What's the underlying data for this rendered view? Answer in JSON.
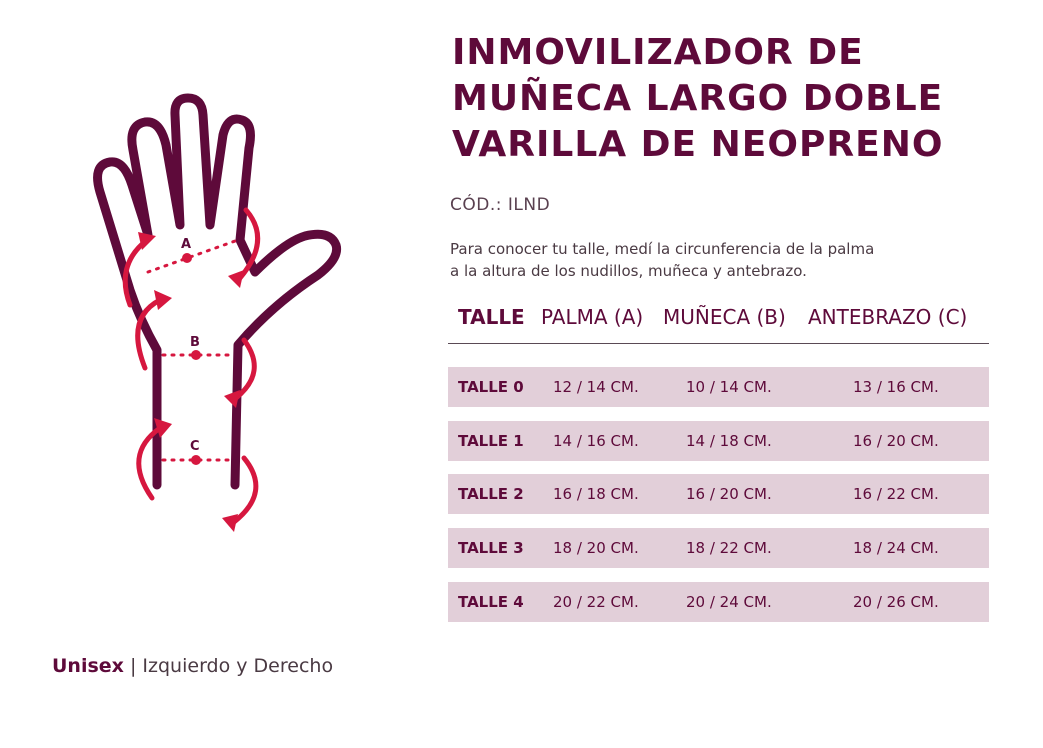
{
  "colors": {
    "brand": "#5e0a3a",
    "accent": "#d6173f",
    "row_bg": "#e2cfd9"
  },
  "illustration": {
    "label_a": "A",
    "label_b": "B",
    "label_c": "C",
    "icon": "hand-measurement-icon"
  },
  "title_lines": [
    "INMOVILIZADOR DE",
    "MUÑECA LARGO DOBLE",
    "VARILLA DE NEOPRENO"
  ],
  "code": "CÓD.: ILND",
  "description_lines": [
    "Para conocer tu talle, medí la circunferencia de la palma",
    "a la altura de los nudillos, muñeca y antebrazo."
  ],
  "table": {
    "headers": [
      "TALLE",
      "PALMA (A)",
      "MUÑECA (B)",
      "ANTEBRAZO (C)"
    ],
    "rows": [
      [
        "TALLE 0",
        "12 / 14 CM.",
        "10 / 14 CM.",
        "13 / 16 CM."
      ],
      [
        "TALLE 1",
        "14 / 16 CM.",
        "14 / 18 CM.",
        "16 / 20 CM."
      ],
      [
        "TALLE 2",
        "16 / 18 CM.",
        "16 / 20 CM.",
        "16 / 22 CM."
      ],
      [
        "TALLE 3",
        "18 / 20 CM.",
        "18 / 22 CM.",
        "18 / 24 CM."
      ],
      [
        "TALLE 4",
        "20 / 22 CM.",
        "20 / 24 CM.",
        "20 / 26 CM."
      ]
    ]
  },
  "footer": {
    "strong": "Unisex",
    "separator": "|",
    "rest": "Izquierdo y Derecho"
  }
}
